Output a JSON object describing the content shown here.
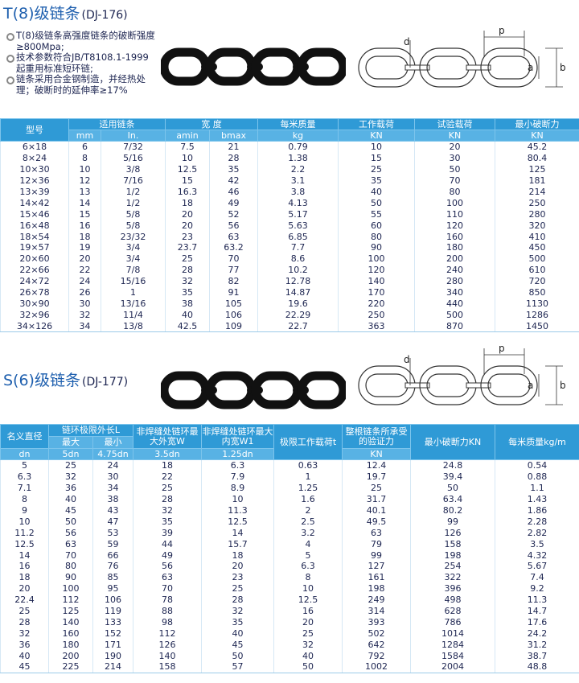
{
  "section1": {
    "title": "T(8)级链条",
    "code": "(DJ-176)",
    "bullets": [
      "T(8)级链条高强度链条的破断强度≥800Mpa;",
      "技术参数符合JB/T8108.1-1999起重用标准短环链;",
      "链条采用合金钢制造，并经热处理；破断时的延伸率≥17%"
    ],
    "diagram_labels": [
      "d",
      "p",
      "a",
      "b"
    ]
  },
  "table1": {
    "header": [
      "型号",
      "适用链条",
      "宽 度",
      "每米质量",
      "工作载荷",
      "试验载荷",
      "最小破断力"
    ],
    "units": [
      "mm",
      "In.",
      "amin",
      "bmax",
      "kg",
      "KN",
      "KN",
      "KN"
    ],
    "rows": [
      [
        "6×18",
        "6",
        "7/32",
        "7.5",
        "21",
        "0.79",
        "10",
        "20",
        "45.2"
      ],
      [
        "8×24",
        "8",
        "5/16",
        "10",
        "28",
        "1.38",
        "15",
        "30",
        "80.4"
      ],
      [
        "10×30",
        "10",
        "3/8",
        "12.5",
        "35",
        "2.2",
        "25",
        "50",
        "125"
      ],
      [
        "12×36",
        "12",
        "7/16",
        "15",
        "42",
        "3.1",
        "35",
        "70",
        "181"
      ],
      [
        "13×39",
        "13",
        "1/2",
        "16.3",
        "46",
        "3.8",
        "40",
        "80",
        "214"
      ],
      [
        "14×42",
        "14",
        "1/2",
        "18",
        "49",
        "4.13",
        "50",
        "100",
        "250"
      ],
      [
        "15×46",
        "15",
        "5/8",
        "20",
        "52",
        "5.17",
        "55",
        "110",
        "280"
      ],
      [
        "16×48",
        "16",
        "5/8",
        "20",
        "56",
        "5.63",
        "60",
        "120",
        "320"
      ],
      [
        "18×54",
        "18",
        "23/32",
        "23",
        "63",
        "6.85",
        "80",
        "160",
        "410"
      ],
      [
        "19×57",
        "19",
        "3/4",
        "23.7",
        "63.2",
        "7.7",
        "90",
        "180",
        "450"
      ],
      [
        "20×60",
        "20",
        "3/4",
        "25",
        "70",
        "8.6",
        "100",
        "200",
        "500"
      ],
      [
        "22×66",
        "22",
        "7/8",
        "28",
        "77",
        "10.2",
        "120",
        "240",
        "610"
      ],
      [
        "24×72",
        "24",
        "15/16",
        "32",
        "82",
        "12.78",
        "140",
        "280",
        "720"
      ],
      [
        "26×78",
        "26",
        "1",
        "35",
        "91",
        "14.87",
        "170",
        "340",
        "850"
      ],
      [
        "30×90",
        "30",
        "13/16",
        "38",
        "105",
        "19.6",
        "220",
        "440",
        "1130"
      ],
      [
        "32×96",
        "32",
        "11/4",
        "40",
        "106",
        "22.29",
        "250",
        "500",
        "1286"
      ],
      [
        "34×126",
        "34",
        "13/8",
        "42.5",
        "109",
        "22.7",
        "363",
        "870",
        "1450"
      ]
    ]
  },
  "section2": {
    "title": "S(6)级链条",
    "code": "(DJ-177)",
    "diagram_labels": [
      "d",
      "p",
      "a",
      "b"
    ]
  },
  "table2": {
    "header": [
      "名义直径",
      "链环极限外长L",
      "非焊缝处链环最大外宽W",
      "非焊缝处链环最大内宽W1",
      "极限工作载荷t",
      "整根链条所承受的验证力",
      "最小破断力KN",
      "每米质量kg/m"
    ],
    "subheader": [
      "最大",
      "最小"
    ],
    "units": [
      "dn",
      "5dn",
      "4.75dn",
      "3.5dn",
      "1.25dn",
      "KN"
    ],
    "rows": [
      [
        "5",
        "25",
        "24",
        "18",
        "6.3",
        "0.63",
        "12.4",
        "24.8",
        "0.54"
      ],
      [
        "6.3",
        "32",
        "30",
        "22",
        "7.9",
        "1",
        "19.7",
        "39.4",
        "0.88"
      ],
      [
        "7.1",
        "36",
        "34",
        "25",
        "8.9",
        "1.25",
        "25",
        "50",
        "1.1"
      ],
      [
        "8",
        "40",
        "38",
        "28",
        "10",
        "1.6",
        "31.7",
        "63.4",
        "1.43"
      ],
      [
        "9",
        "45",
        "43",
        "32",
        "11.3",
        "2",
        "40.1",
        "80.2",
        "1.86"
      ],
      [
        "10",
        "50",
        "47",
        "35",
        "12.5",
        "2.5",
        "49.5",
        "99",
        "2.28"
      ],
      [
        "11.2",
        "56",
        "53",
        "39",
        "14",
        "3.2",
        "63",
        "126",
        "2.82"
      ],
      [
        "12.5",
        "63",
        "59",
        "44",
        "15.7",
        "4",
        "79",
        "158",
        "3.5"
      ],
      [
        "14",
        "70",
        "66",
        "49",
        "18",
        "5",
        "99",
        "198",
        "4.32"
      ],
      [
        "16",
        "80",
        "76",
        "56",
        "20",
        "6.3",
        "127",
        "254",
        "5.67"
      ],
      [
        "18",
        "90",
        "85",
        "63",
        "23",
        "8",
        "161",
        "322",
        "7.4"
      ],
      [
        "20",
        "100",
        "95",
        "70",
        "25",
        "10",
        "198",
        "396",
        "9.2"
      ],
      [
        "22.4",
        "112",
        "106",
        "78",
        "28",
        "12.5",
        "249",
        "498",
        "11.3"
      ],
      [
        "25",
        "125",
        "119",
        "88",
        "32",
        "16",
        "314",
        "628",
        "14.7"
      ],
      [
        "28",
        "140",
        "133",
        "98",
        "35",
        "20",
        "393",
        "786",
        "17.6"
      ],
      [
        "32",
        "160",
        "152",
        "112",
        "40",
        "25",
        "502",
        "1014",
        "24.2"
      ],
      [
        "36",
        "180",
        "171",
        "126",
        "45",
        "32",
        "642",
        "1284",
        "31.2"
      ],
      [
        "40",
        "200",
        "190",
        "140",
        "50",
        "40",
        "792",
        "1584",
        "38.7"
      ],
      [
        "45",
        "225",
        "214",
        "158",
        "57",
        "50",
        "1002",
        "2004",
        "48.8"
      ]
    ]
  }
}
